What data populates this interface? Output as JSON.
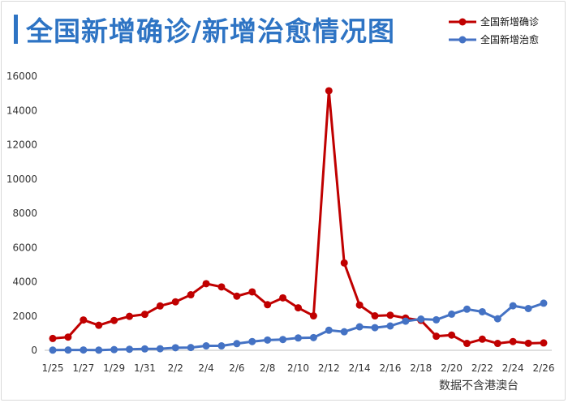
{
  "chart_data": {
    "type": "line",
    "title": "全国新增确诊/新增治愈情况图",
    "note": "数据不含港澳台",
    "categories": [
      "1/25",
      "1/26",
      "1/27",
      "1/28",
      "1/29",
      "1/30",
      "1/31",
      "2/1",
      "2/2",
      "2/3",
      "2/4",
      "2/5",
      "2/6",
      "2/7",
      "2/8",
      "2/9",
      "2/10",
      "2/11",
      "2/12",
      "2/13",
      "2/14",
      "2/15",
      "2/16",
      "2/17",
      "2/18",
      "2/19",
      "2/20",
      "2/21",
      "2/22",
      "2/23",
      "2/24",
      "2/25",
      "2/26"
    ],
    "x_tick_labels": [
      "1/25",
      "1/27",
      "1/29",
      "1/31",
      "2/2",
      "2/4",
      "2/6",
      "2/8",
      "2/10",
      "2/12",
      "2/14",
      "2/16",
      "2/18",
      "2/20",
      "2/22",
      "2/24",
      "2/26"
    ],
    "y_ticks": [
      0,
      2000,
      4000,
      6000,
      8000,
      10000,
      12000,
      14000,
      16000
    ],
    "ylim": [
      0,
      16000
    ],
    "grid": false,
    "legend_position": "top-right",
    "series": [
      {
        "name": "全国新增确诊",
        "color": "#c00000",
        "values": [
          690,
          770,
          1770,
          1460,
          1740,
          1980,
          2100,
          2590,
          2830,
          3240,
          3890,
          3700,
          3160,
          3410,
          2660,
          3060,
          2480,
          2010,
          15150,
          5100,
          2640,
          2010,
          2050,
          1880,
          1750,
          820,
          890,
          400,
          650,
          400,
          510,
          410,
          430
        ]
      },
      {
        "name": "全国新增治愈",
        "color": "#4472c4",
        "values": [
          10,
          15,
          20,
          10,
          40,
          60,
          80,
          90,
          150,
          160,
          260,
          260,
          390,
          510,
          600,
          630,
          720,
          740,
          1170,
          1080,
          1370,
          1320,
          1420,
          1700,
          1820,
          1780,
          2110,
          2400,
          2250,
          1840,
          2600,
          2440,
          2750
        ]
      }
    ]
  }
}
